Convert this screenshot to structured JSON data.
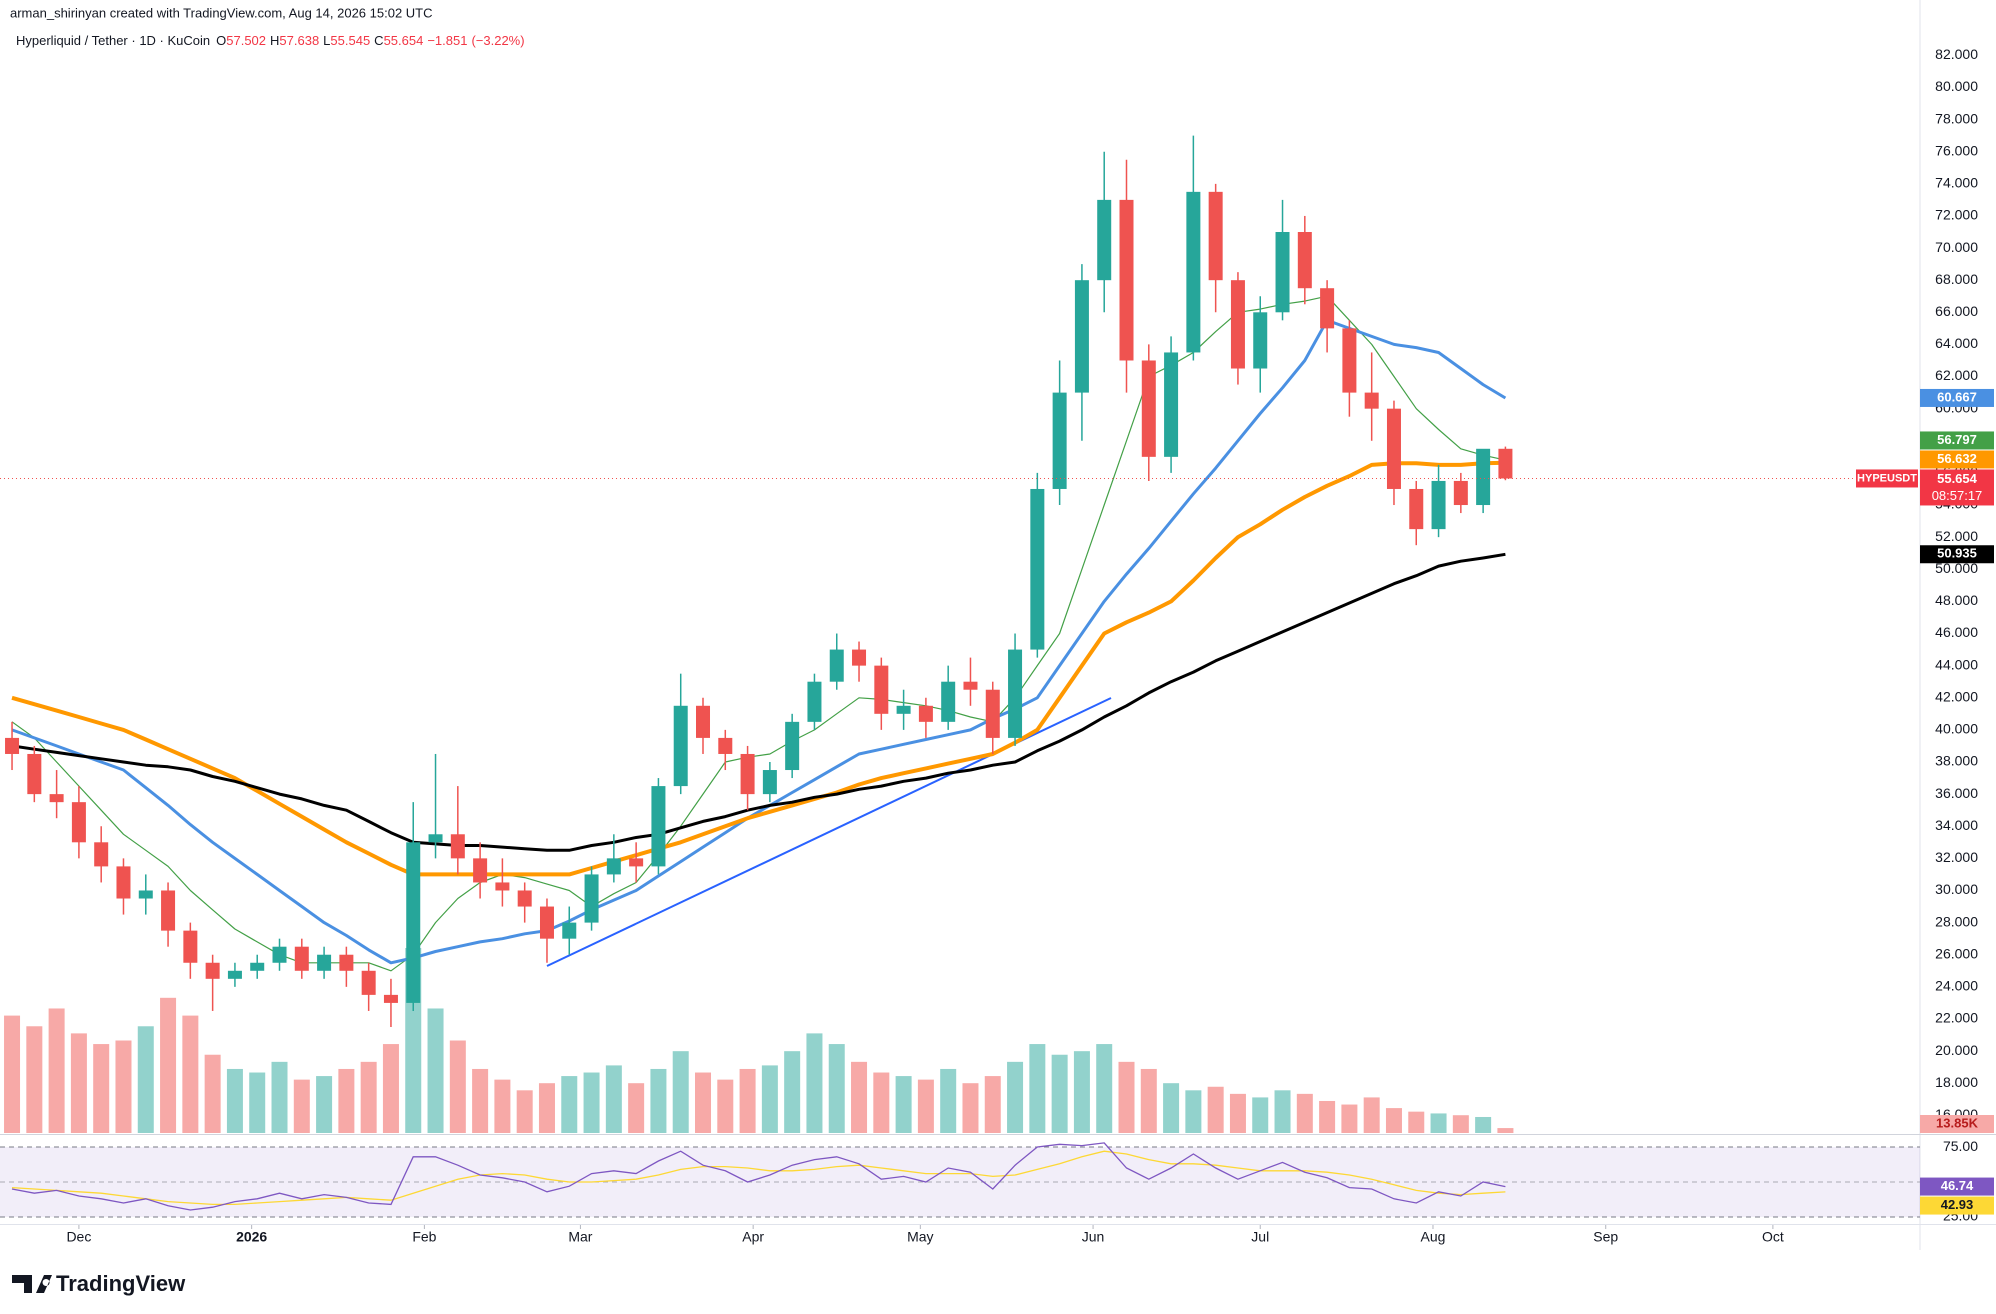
{
  "chart_data": {
    "type": "candlestick",
    "header": "arman_shirinyan created with TradingView.com, Aug 14, 2026 15:02 UTC",
    "symbol": "Hyperliquid / Tether · 1D · KuCoin",
    "ohlc_letters": [
      "O",
      "H",
      "L",
      "C"
    ],
    "legend_ohlc": [
      57.502,
      57.638,
      55.545,
      55.654
    ],
    "change": {
      "value": -1.851,
      "label": "−1.851"
    },
    "change_pct": {
      "value": -3.22,
      "label": "(−3.22%)"
    },
    "ticker": "HYPEUSDT",
    "countdown": "08:57:17",
    "brand": "TradingView",
    "up_color": "#26a69a",
    "down_color": "#ef5350",
    "grid": false,
    "xlim": [
      -0.54,
      85.6
    ],
    "ylim": [
      14.9,
      84.2
    ],
    "xticks": [
      {
        "value": 3,
        "label": "Dec"
      },
      {
        "value": 10.75,
        "label": "2026"
      },
      {
        "value": 18.5,
        "label": "Feb"
      },
      {
        "value": 25.5,
        "label": "Mar"
      },
      {
        "value": 33.25,
        "label": "Apr"
      },
      {
        "value": 40.75,
        "label": "May"
      },
      {
        "value": 48.5,
        "label": "Jun"
      },
      {
        "value": 56,
        "label": "Jul"
      },
      {
        "value": 63.75,
        "label": "Aug"
      },
      {
        "value": 71.5,
        "label": "Sep"
      },
      {
        "value": 79,
        "label": "Oct"
      }
    ],
    "yticks": [
      {
        "value": 16,
        "label": "16.000"
      },
      {
        "value": 18,
        "label": "18.000"
      },
      {
        "value": 20,
        "label": "20.000"
      },
      {
        "value": 22,
        "label": "22.000"
      },
      {
        "value": 24,
        "label": "24.000"
      },
      {
        "value": 26,
        "label": "26.000"
      },
      {
        "value": 28,
        "label": "28.000"
      },
      {
        "value": 30,
        "label": "30.000"
      },
      {
        "value": 32,
        "label": "32.000"
      },
      {
        "value": 34,
        "label": "34.000"
      },
      {
        "value": 36,
        "label": "36.000"
      },
      {
        "value": 38,
        "label": "38.000"
      },
      {
        "value": 40,
        "label": "40.000"
      },
      {
        "value": 42,
        "label": "42.000"
      },
      {
        "value": 44,
        "label": "44.000"
      },
      {
        "value": 46,
        "label": "46.000"
      },
      {
        "value": 48,
        "label": "48.000"
      },
      {
        "value": 50,
        "label": "50.000"
      },
      {
        "value": 52,
        "label": "52.000"
      },
      {
        "value": 54,
        "label": "54.000"
      },
      {
        "value": 56,
        "label": "56.000"
      },
      {
        "value": 58,
        "label": "58.000"
      },
      {
        "value": 60,
        "label": "60.000"
      },
      {
        "value": 62,
        "label": "62.000"
      },
      {
        "value": 64,
        "label": "64.000"
      },
      {
        "value": 66,
        "label": "66.000"
      },
      {
        "value": 68,
        "label": "68.000"
      },
      {
        "value": 70,
        "label": "70.000"
      },
      {
        "value": 72,
        "label": "72.000"
      },
      {
        "value": 74,
        "label": "74.000"
      },
      {
        "value": 76,
        "label": "76.000"
      },
      {
        "value": 78,
        "label": "78.000"
      },
      {
        "value": 80,
        "label": "80.000"
      },
      {
        "value": 82,
        "label": "82.000"
      }
    ],
    "ohlc": [
      [
        39.5,
        40.5,
        37.5,
        38.5
      ],
      [
        38.5,
        39,
        35.5,
        36
      ],
      [
        36,
        37.5,
        34.5,
        35.5
      ],
      [
        35.5,
        36.5,
        32,
        33
      ],
      [
        33,
        34,
        30.5,
        31.5
      ],
      [
        31.5,
        32,
        28.5,
        29.5
      ],
      [
        29.5,
        31,
        28.5,
        30
      ],
      [
        30,
        30.5,
        26.5,
        27.5
      ],
      [
        27.5,
        28,
        24.5,
        25.5
      ],
      [
        25.5,
        26,
        22.5,
        24.5
      ],
      [
        24.5,
        25.5,
        24,
        25
      ],
      [
        25,
        26,
        24.5,
        25.5
      ],
      [
        25.5,
        27,
        25,
        26.5
      ],
      [
        26.5,
        27,
        24.5,
        25
      ],
      [
        25,
        26.5,
        24.5,
        26
      ],
      [
        26,
        26.5,
        24,
        25
      ],
      [
        25,
        25.5,
        22.5,
        23.5
      ],
      [
        23.5,
        24.5,
        21.5,
        23
      ],
      [
        23,
        35.5,
        22.5,
        33
      ],
      [
        33,
        38.5,
        32,
        33.5
      ],
      [
        33.5,
        36.5,
        31,
        32
      ],
      [
        32,
        33,
        29.5,
        30.5
      ],
      [
        30.5,
        32,
        29,
        30
      ],
      [
        30,
        30.5,
        28,
        29
      ],
      [
        29,
        29.5,
        25.5,
        27
      ],
      [
        27,
        29,
        26,
        28
      ],
      [
        28,
        31.5,
        27.5,
        31
      ],
      [
        31,
        33.5,
        30.5,
        32
      ],
      [
        32,
        33,
        30.5,
        31.5
      ],
      [
        31.5,
        37,
        31,
        36.5
      ],
      [
        36.5,
        43.5,
        36,
        41.5
      ],
      [
        41.5,
        42,
        38.5,
        39.5
      ],
      [
        39.5,
        40,
        37.5,
        38.5
      ],
      [
        38.5,
        39,
        35,
        36
      ],
      [
        36,
        38,
        35.5,
        37.5
      ],
      [
        37.5,
        41,
        37,
        40.5
      ],
      [
        40.5,
        43.5,
        40,
        43
      ],
      [
        43,
        46,
        42.5,
        45
      ],
      [
        45,
        45.5,
        43,
        44
      ],
      [
        44,
        44.5,
        40,
        41
      ],
      [
        41,
        42.5,
        40,
        41.5
      ],
      [
        41.5,
        42,
        39.5,
        40.5
      ],
      [
        40.5,
        44,
        40,
        43
      ],
      [
        43,
        44.5,
        41.5,
        42.5
      ],
      [
        42.5,
        43,
        38.5,
        39.5
      ],
      [
        39.5,
        46,
        39,
        45
      ],
      [
        45,
        56,
        44.5,
        55
      ],
      [
        55,
        63,
        54,
        61
      ],
      [
        61,
        69,
        58,
        68
      ],
      [
        68,
        76,
        66,
        73
      ],
      [
        73,
        75.5,
        61,
        63
      ],
      [
        63,
        64,
        55.5,
        57
      ],
      [
        57,
        64.5,
        56,
        63.5
      ],
      [
        63.5,
        77,
        63,
        73.5
      ],
      [
        73.5,
        74,
        66,
        68
      ],
      [
        68,
        68.5,
        61.5,
        62.5
      ],
      [
        62.5,
        67,
        61,
        66
      ],
      [
        66,
        73,
        65.5,
        71
      ],
      [
        71,
        72,
        66.5,
        67.5
      ],
      [
        67.5,
        68,
        63.5,
        65
      ],
      [
        65,
        65.5,
        59.5,
        61
      ],
      [
        61,
        63.5,
        58,
        60
      ],
      [
        60,
        60.5,
        54,
        55
      ],
      [
        55,
        55.5,
        51.5,
        52.5
      ],
      [
        52.5,
        56.5,
        52,
        55.5
      ],
      [
        55.5,
        56,
        53.5,
        54
      ],
      [
        54,
        57,
        53.5,
        57.502
      ],
      [
        57.502,
        57.638,
        55.545,
        55.654
      ]
    ],
    "series": [
      {
        "color": "#43a047",
        "values": [
          40.5,
          39.5,
          38,
          36.5,
          35,
          33.5,
          32.5,
          31.5,
          30,
          28.8,
          27.6,
          26.8,
          26,
          25.5,
          25.5,
          25.5,
          25.5,
          25,
          26,
          28,
          29.5,
          30.5,
          31,
          30.8,
          30.4,
          30,
          29,
          29.8,
          30.5,
          32.2,
          34,
          36,
          38,
          38.3,
          38.5,
          39.3,
          40,
          41,
          42,
          41.9,
          41.7,
          41.5,
          41.2,
          40.8,
          40.5,
          42,
          44,
          46,
          50,
          54,
          58,
          62,
          62.7,
          63.5,
          64.8,
          66,
          66.2,
          66.5,
          66.7,
          67,
          65.5,
          64,
          62,
          60,
          58.7,
          57.5,
          57.1,
          56.797
        ]
      },
      {
        "color": "#4a90e2",
        "values": [
          40,
          39.5,
          39,
          38.5,
          38,
          37.5,
          36.4,
          35.3,
          34.1,
          33,
          32,
          31,
          30,
          29,
          28,
          27.2,
          26.3,
          25.5,
          25.8,
          26.2,
          26.5,
          26.8,
          27,
          27.3,
          27.5,
          28.1,
          28.8,
          29.4,
          30,
          30.9,
          31.8,
          32.7,
          33.6,
          34.5,
          35.3,
          36.1,
          36.9,
          37.7,
          38.5,
          38.8,
          39.1,
          39.4,
          39.7,
          40,
          40.7,
          41.3,
          42,
          44,
          46,
          48,
          49.7,
          51.3,
          53,
          54.7,
          56.3,
          58,
          59.7,
          61.3,
          63,
          65.5,
          65,
          64.5,
          64,
          63.8,
          63.5,
          62.5,
          61.5,
          60.667
        ]
      },
      {
        "color": "#ff9800",
        "values": [
          42,
          41.6,
          41.2,
          40.8,
          40.4,
          40,
          39.4,
          38.8,
          38.2,
          37.6,
          37,
          36.2,
          35.4,
          34.6,
          33.8,
          33,
          32.3,
          31.6,
          31,
          31,
          31,
          31,
          31,
          31,
          31,
          31,
          31.4,
          31.8,
          32.2,
          32.6,
          33,
          33.5,
          34,
          34.5,
          34.9,
          35.3,
          35.7,
          36.1,
          36.6,
          37,
          37.3,
          37.6,
          37.9,
          38.2,
          38.5,
          39.2,
          40,
          42,
          44,
          46,
          46.7,
          47.3,
          48,
          49.3,
          50.7,
          52,
          52.8,
          53.7,
          54.5,
          55.2,
          55.8,
          56.5,
          56.6,
          56.6,
          56.5,
          56.5,
          56.6,
          56.632
        ]
      },
      {
        "color": "#000000",
        "values": [
          39,
          38.8,
          38.6,
          38.4,
          38.2,
          38,
          37.8,
          37.7,
          37.5,
          37.1,
          36.8,
          36.4,
          36,
          35.7,
          35.3,
          35,
          34.3,
          33.6,
          33,
          32.9,
          32.8,
          32.8,
          32.7,
          32.6,
          32.5,
          32.5,
          32.8,
          33,
          33.3,
          33.5,
          33.9,
          34.3,
          34.6,
          35,
          35.3,
          35.5,
          35.8,
          36,
          36.3,
          36.5,
          36.8,
          37,
          37.3,
          37.5,
          37.8,
          38,
          38.7,
          39.3,
          40,
          40.8,
          41.5,
          42.3,
          43,
          43.6,
          44.3,
          44.9,
          45.5,
          46.1,
          46.7,
          47.3,
          47.9,
          48.5,
          49.1,
          49.6,
          50.2,
          50.5,
          50.7,
          50.935
        ]
      }
    ],
    "volume": {
      "values": [
        330,
        300,
        350,
        280,
        250,
        260,
        300,
        380,
        330,
        220,
        180,
        170,
        200,
        150,
        160,
        180,
        200,
        250,
        520,
        350,
        260,
        180,
        150,
        120,
        140,
        160,
        170,
        190,
        140,
        180,
        230,
        170,
        150,
        180,
        190,
        230,
        280,
        250,
        200,
        170,
        160,
        150,
        180,
        140,
        160,
        200,
        250,
        220,
        230,
        250,
        200,
        180,
        140,
        120,
        130,
        110,
        100,
        120,
        110,
        90,
        80,
        100,
        70,
        60,
        55,
        50,
        45,
        13.85
      ],
      "last_label": "13.85K"
    },
    "rsi": {
      "color": "#7e57c2",
      "ma_color": "#fdd835",
      "ylim": [
        21.4,
        82.9
      ],
      "yticks": [
        {
          "value": 25,
          "label": "25.00"
        },
        {
          "value": 75,
          "label": "75.00"
        }
      ],
      "values": [
        45,
        42,
        44,
        40,
        38,
        35,
        38,
        33,
        30,
        32,
        36,
        38,
        42,
        38,
        41,
        39,
        35,
        34,
        68,
        68,
        62,
        55,
        53,
        50,
        43,
        47,
        56,
        58,
        56,
        65,
        72,
        62,
        58,
        50,
        55,
        62,
        66,
        68,
        63,
        52,
        54,
        50,
        60,
        57,
        45,
        62,
        75,
        77,
        76,
        78,
        60,
        52,
        60,
        70,
        60,
        52,
        58,
        64,
        57,
        53,
        46,
        45,
        38,
        35,
        43,
        40,
        50,
        46.74
      ],
      "ma_values": [
        46,
        45,
        44,
        43,
        42,
        40,
        38,
        36,
        35,
        34,
        34,
        35,
        36,
        37,
        38,
        39,
        38,
        37,
        42,
        47,
        52,
        55,
        56,
        55,
        52,
        50,
        50,
        51,
        52,
        55,
        59,
        61,
        61,
        60,
        58,
        58,
        59,
        61,
        62,
        60,
        58,
        56,
        56,
        56,
        54,
        55,
        59,
        63,
        68,
        72,
        70,
        66,
        63,
        63,
        62,
        60,
        58,
        58,
        58,
        57,
        55,
        52,
        48,
        44,
        42,
        41,
        42,
        42.93
      ]
    }
  }
}
